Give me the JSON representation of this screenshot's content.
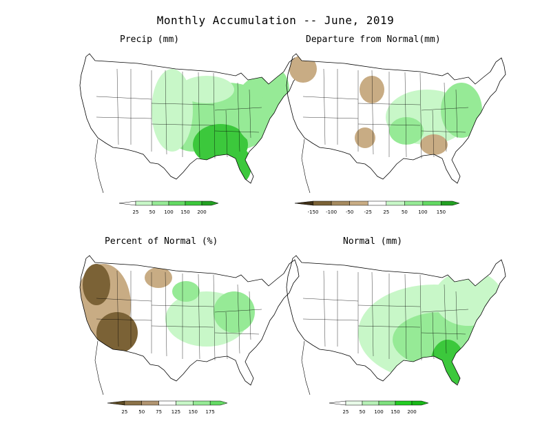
{
  "title": "Monthly Accumulation -- June, 2019",
  "panels": {
    "precip": {
      "title": "Precip (mm)",
      "colorbar": {
        "labels": [
          "25",
          "50",
          "100",
          "150",
          "200"
        ],
        "colors": [
          "#ffffff",
          "#c8f7c8",
          "#96ea96",
          "#64da64",
          "#3cc83c",
          "#22a022"
        ],
        "under_colors": [
          "#ffffff"
        ]
      }
    },
    "departure": {
      "title": "Departure from Normal(mm)",
      "colorbar": {
        "labels": [
          "-150",
          "-100",
          "-50",
          "-25",
          "25",
          "50",
          "100",
          "150"
        ],
        "colors": [
          "#3f3018",
          "#7b6236",
          "#a58a5f",
          "#c8ac84",
          "#ffffff",
          "#c8f7c8",
          "#96ea96",
          "#64da64",
          "#22a022"
        ]
      }
    },
    "percent": {
      "title": "Percent of Normal (%)",
      "colorbar": {
        "labels": [
          "25",
          "50",
          "75",
          "125",
          "150",
          "175"
        ],
        "colors": [
          "#5c4a24",
          "#8b7248",
          "#b09470",
          "#ffffff",
          "#c8f7c8",
          "#96ea96",
          "#64da64"
        ]
      }
    },
    "normal": {
      "title": "Normal (mm)",
      "colorbar": {
        "labels": [
          "25",
          "50",
          "100",
          "150",
          "200"
        ],
        "colors": [
          "#ffffff",
          "#e8fae8",
          "#b6f0b6",
          "#7ee07e",
          "#22cc22",
          "#18b818"
        ]
      }
    }
  },
  "colors": {
    "map_outline": "#000000",
    "green_light": "#c8f7c8",
    "green_mid": "#96ea96",
    "green_dark": "#3cc83c",
    "brown_light": "#c8ac84",
    "brown_dark": "#7b6236"
  }
}
